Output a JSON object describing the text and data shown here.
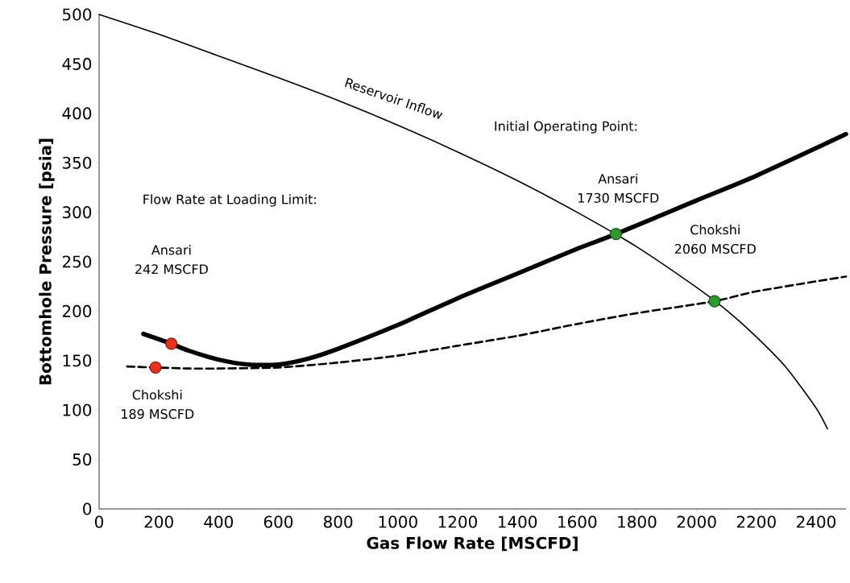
{
  "chart_data": {
    "type": "line",
    "xlabel": "Gas Flow Rate [MSCFD]",
    "ylabel": "Bottomhole Pressure [psia]",
    "xlim": [
      0,
      2500
    ],
    "ylim": [
      0,
      500
    ],
    "xticks": [
      0,
      200,
      400,
      600,
      800,
      1000,
      1200,
      1400,
      1600,
      1800,
      2000,
      2200,
      2400
    ],
    "yticks": [
      0,
      50,
      100,
      150,
      200,
      250,
      300,
      350,
      400,
      450,
      500
    ],
    "grid": false,
    "marker": "none",
    "series": [
      {
        "color": "#000000",
        "line_style": "solid",
        "x": [
          0,
          200,
          400,
          600,
          800,
          1000,
          1200,
          1400,
          1600,
          1800,
          2000,
          2100,
          2200,
          2300,
          2400,
          2438
        ],
        "values": [
          500,
          480,
          458,
          436,
          413,
          388,
          361,
          332,
          300,
          265,
          224,
          201,
          174,
          143,
          102,
          81
        ]
      },
      {
        "color": "#000000",
        "line_style": "solid",
        "x": [
          148,
          242,
          300,
          400,
          500,
          600,
          700,
          800,
          1000,
          1200,
          1400,
          1600,
          1730,
          2000,
          2200,
          2500
        ],
        "values": [
          177,
          167,
          160,
          151,
          146,
          146,
          152,
          162,
          186,
          213,
          238,
          263,
          278,
          312,
          337,
          379
        ]
      },
      {
        "color": "#000000",
        "line_style": "dashed",
        "x": [
          94,
          189,
          300,
          400,
          600,
          800,
          1000,
          1200,
          1400,
          1600,
          1800,
          2060,
          2200,
          2500
        ],
        "values": [
          144,
          143,
          142,
          142,
          143,
          148,
          155,
          165,
          175,
          187,
          198,
          210,
          220,
          235
        ]
      },
      {
        "type": "scatter",
        "marker": "circle",
        "x": [
          189,
          242,
          1730,
          2060
        ],
        "values": [
          143,
          167,
          278,
          210
        ],
        "colors": [
          "#e8321e",
          "#e8321e",
          "#2e9a2e",
          "#2e9a2e"
        ]
      }
    ],
    "annotations": [
      {
        "text": "Reservoir Inflow",
        "x": 960,
        "y": 392
      },
      "Initial Operating Point:",
      "Ansari",
      "1730 MSCFD",
      "Chokshi",
      "2060 MSCFD",
      "Flow Rate at Loading Limit:",
      "Ansari",
      "242 MSCFD",
      "Chokshi",
      "189 MSCFD"
    ]
  }
}
